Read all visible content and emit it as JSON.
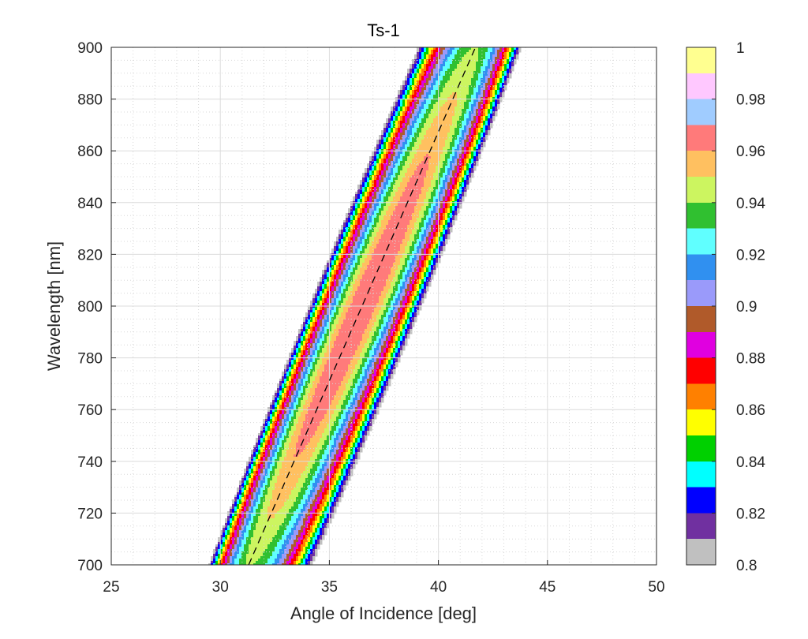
{
  "chart_data": {
    "type": "contour",
    "title": "Ts-1",
    "xlabel": "Angle of Incidence [deg]",
    "ylabel": "Wavelength [nm]",
    "xlim": [
      25,
      50
    ],
    "ylim": [
      700,
      900
    ],
    "xticks": [
      25,
      30,
      35,
      40,
      45,
      50
    ],
    "yticks": [
      700,
      720,
      740,
      760,
      780,
      800,
      820,
      840,
      860,
      880,
      900
    ],
    "grid": "major and minor",
    "colorbar": {
      "placement": "right",
      "range": [
        0.8,
        1.0
      ],
      "ticks": [
        "0.8",
        "0.82",
        "0.84",
        "0.86",
        "0.88",
        "0.9",
        "0.92",
        "0.94",
        "0.96",
        "0.98",
        "1"
      ],
      "levels": [
        {
          "from": 0.8,
          "to": 0.81,
          "color": "#c0c0c0"
        },
        {
          "from": 0.81,
          "to": 0.82,
          "color": "#7030a0"
        },
        {
          "from": 0.82,
          "to": 0.83,
          "color": "#0000ff"
        },
        {
          "from": 0.83,
          "to": 0.84,
          "color": "#00ffff"
        },
        {
          "from": 0.84,
          "to": 0.85,
          "color": "#00d000"
        },
        {
          "from": 0.85,
          "to": 0.86,
          "color": "#ffff00"
        },
        {
          "from": 0.86,
          "to": 0.87,
          "color": "#ff8000"
        },
        {
          "from": 0.87,
          "to": 0.88,
          "color": "#ff0000"
        },
        {
          "from": 0.88,
          "to": 0.89,
          "color": "#e000e0"
        },
        {
          "from": 0.89,
          "to": 0.9,
          "color": "#b05a2a"
        },
        {
          "from": 0.9,
          "to": 0.91,
          "color": "#9a9afa"
        },
        {
          "from": 0.91,
          "to": 0.92,
          "color": "#3090f0"
        },
        {
          "from": 0.92,
          "to": 0.93,
          "color": "#60ffff"
        },
        {
          "from": 0.93,
          "to": 0.94,
          "color": "#30c030"
        },
        {
          "from": 0.94,
          "to": 0.95,
          "color": "#ccf560"
        },
        {
          "from": 0.95,
          "to": 0.96,
          "color": "#ffc060"
        },
        {
          "from": 0.96,
          "to": 0.97,
          "color": "#ff7a7a"
        },
        {
          "from": 0.97,
          "to": 0.98,
          "color": "#a0ccff"
        },
        {
          "from": 0.98,
          "to": 0.99,
          "color": "#ffc8ff"
        },
        {
          "from": 0.99,
          "to": 1.0,
          "color": "#ffff90"
        }
      ]
    },
    "peak": {
      "angle": 36.5,
      "wavelength": 800,
      "value": 0.97
    },
    "dashed_line": {
      "points": [
        [
          31.3,
          700
        ],
        [
          41.7,
          900
        ]
      ],
      "style": "dashed",
      "color": "#000000"
    }
  }
}
